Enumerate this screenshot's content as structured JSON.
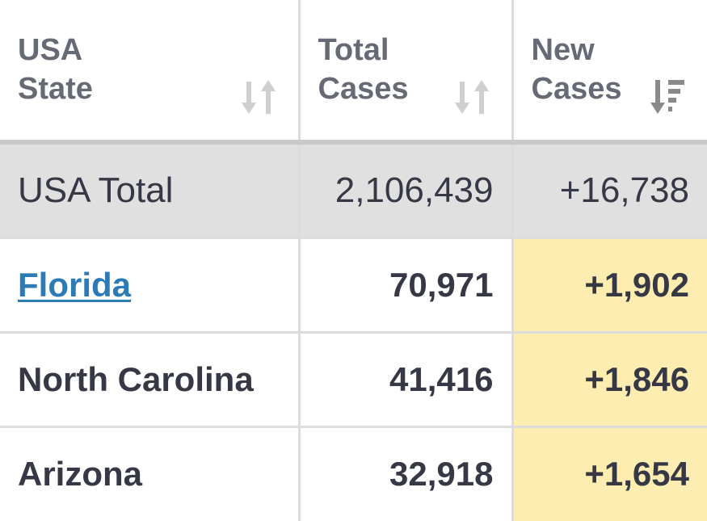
{
  "columns": [
    {
      "label_line1": "USA",
      "label_line2": "State",
      "sort": "unsorted-icon"
    },
    {
      "label_line1": "Total",
      "label_line2": "Cases",
      "sort": "unsorted-icon"
    },
    {
      "label_line1": "New",
      "label_line2": "Cases",
      "sort": "sort-descending-icon"
    }
  ],
  "total_row": {
    "state": "USA Total",
    "total_cases": "2,106,439",
    "new_cases": "+16,738"
  },
  "rows": [
    {
      "state": "Florida",
      "total_cases": "70,971",
      "new_cases": "+1,902"
    },
    {
      "state": "North Carolina",
      "total_cases": "41,416",
      "new_cases": "+1,846"
    },
    {
      "state": "Arizona",
      "total_cases": "32,918",
      "new_cases": "+1,654"
    }
  ],
  "colors": {
    "header_text": "#666a74",
    "body_text": "#363945",
    "link": "#2c7bb6",
    "total_row_bg": "#e0e0e0",
    "new_cases_highlight": "#fdedb0",
    "border": "#dcdcdc",
    "sort_icon_inactive": "#cfcfcf",
    "sort_icon_active": "#8a8a8a"
  }
}
